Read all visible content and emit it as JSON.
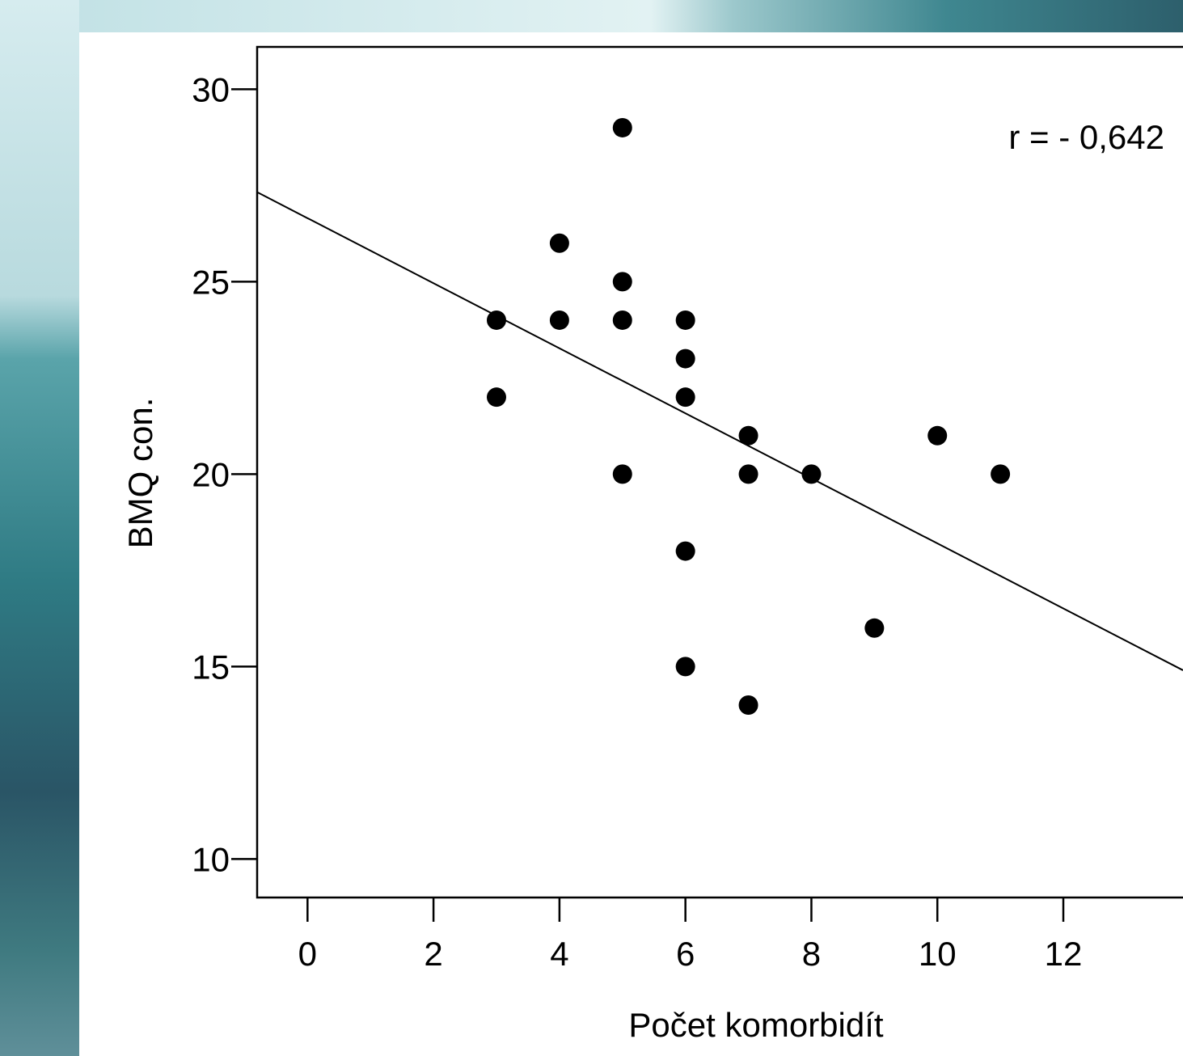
{
  "colors": {
    "page_bg": "#ffffff",
    "backdrop_light": "#cfe6ea",
    "backdrop_teal": "#3f8790",
    "backdrop_dark": "#2f5e6e",
    "ink": "#000000"
  },
  "chart_data": {
    "type": "scatter",
    "xlabel": "Počet komorbidít",
    "ylabel": "BMQ con.",
    "annotation": "r = - 0,642",
    "xlim": [
      -0.8,
      13.9
    ],
    "ylim": [
      9.0,
      31.1
    ],
    "x_ticks": [
      0,
      2,
      4,
      6,
      8,
      10,
      12
    ],
    "x_tick_labels": [
      "0",
      "2",
      "4",
      "6",
      "8",
      "10",
      "12"
    ],
    "y_ticks": [
      10,
      15,
      20,
      25,
      30
    ],
    "y_tick_labels": [
      "10",
      "15",
      "20",
      "25",
      "30"
    ],
    "grid": false,
    "points": [
      {
        "x": 3,
        "y": 24
      },
      {
        "x": 3,
        "y": 22
      },
      {
        "x": 4,
        "y": 26
      },
      {
        "x": 4,
        "y": 24
      },
      {
        "x": 5,
        "y": 29
      },
      {
        "x": 5,
        "y": 25
      },
      {
        "x": 5,
        "y": 24
      },
      {
        "x": 5,
        "y": 20
      },
      {
        "x": 6,
        "y": 24
      },
      {
        "x": 6,
        "y": 23
      },
      {
        "x": 6,
        "y": 22
      },
      {
        "x": 6,
        "y": 18
      },
      {
        "x": 6,
        "y": 15
      },
      {
        "x": 7,
        "y": 21
      },
      {
        "x": 7,
        "y": 20
      },
      {
        "x": 7,
        "y": 14
      },
      {
        "x": 8,
        "y": 20
      },
      {
        "x": 9,
        "y": 16
      },
      {
        "x": 10,
        "y": 21
      },
      {
        "x": 11,
        "y": 20
      }
    ],
    "fit_line": {
      "intercept": 26.65,
      "slope": -0.845
    }
  }
}
